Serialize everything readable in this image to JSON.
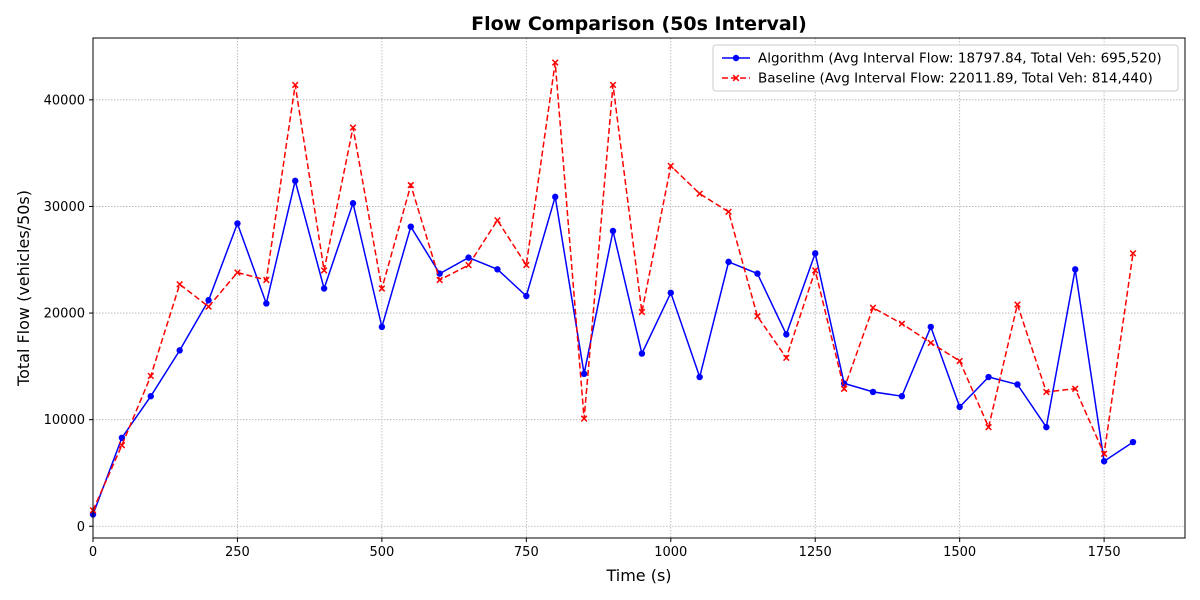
{
  "chart_data": {
    "type": "line",
    "title": "Flow Comparison (50s Interval)",
    "xlabel": "Time (s)",
    "ylabel": "Total Flow (vehicles/50s)",
    "xlim": [
      0,
      1890
    ],
    "ylim": [
      -1100,
      45800
    ],
    "xticks": [
      0,
      250,
      500,
      750,
      1000,
      1250,
      1500,
      1750
    ],
    "yticks": [
      0,
      10000,
      20000,
      30000,
      40000
    ],
    "grid": true,
    "legend_position": "top-right",
    "series": [
      {
        "name": "Algorithm (Avg Interval Flow: 18797.84, Total Veh: 695,520)",
        "color": "#0000ff",
        "linestyle": "solid",
        "marker": "circle",
        "x": [
          0,
          50,
          100,
          150,
          200,
          250,
          300,
          350,
          400,
          450,
          500,
          550,
          600,
          650,
          700,
          750,
          800,
          850,
          900,
          950,
          1000,
          1050,
          1100,
          1150,
          1200,
          1250,
          1300,
          1350,
          1400,
          1450,
          1500,
          1550,
          1600,
          1650,
          1700,
          1750,
          1800
        ],
        "y": [
          1100,
          8300,
          12200,
          16500,
          21200,
          28400,
          20900,
          32400,
          22300,
          30300,
          18700,
          28100,
          23700,
          25200,
          24100,
          21600,
          30900,
          14300,
          27700,
          16200,
          21900,
          14000,
          24800,
          23700,
          18000,
          25600,
          13400,
          12600,
          12200,
          18700,
          11200,
          14000,
          13300,
          9300,
          24100,
          6100,
          7900
        ]
      },
      {
        "name": "Baseline (Avg Interval Flow: 22011.89, Total Veh: 814,440)",
        "color": "#ff0000",
        "linestyle": "dashed",
        "marker": "x",
        "x": [
          0,
          50,
          100,
          150,
          200,
          250,
          300,
          350,
          400,
          450,
          500,
          550,
          600,
          650,
          700,
          750,
          800,
          850,
          900,
          950,
          1000,
          1050,
          1100,
          1150,
          1200,
          1250,
          1300,
          1350,
          1400,
          1450,
          1500,
          1550,
          1600,
          1650,
          1700,
          1750,
          1800
        ],
        "y": [
          1500,
          7600,
          14100,
          22700,
          20600,
          23800,
          23100,
          41400,
          24000,
          37400,
          22300,
          32000,
          23100,
          24500,
          28700,
          24500,
          43500,
          10100,
          41400,
          20100,
          33800,
          31200,
          29500,
          19700,
          15800,
          24000,
          12900,
          20500,
          19000,
          17200,
          15500,
          9300,
          20800,
          12600,
          12900,
          6800,
          25600
        ]
      }
    ]
  }
}
